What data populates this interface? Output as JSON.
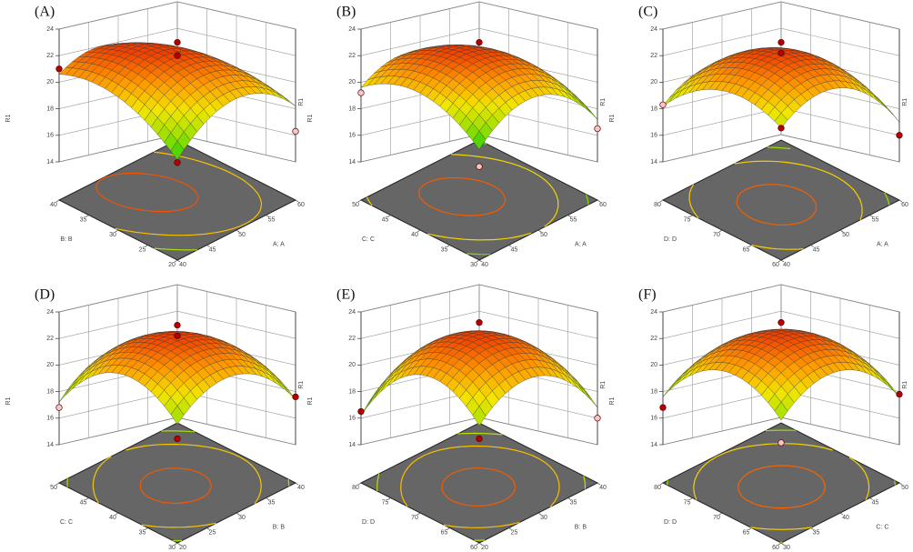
{
  "chart_data": [
    {
      "type": "surface",
      "panel_label": "(A)",
      "zlabel": "R1",
      "xlabel": "A: A",
      "ylabel": "B: B",
      "xlim": [
        40,
        60
      ],
      "xticks": [
        40,
        45,
        50,
        55,
        60
      ],
      "ylim": [
        20,
        40
      ],
      "yticks": [
        20,
        25,
        30,
        35,
        40
      ],
      "zlim": [
        14,
        24
      ],
      "zticks": [
        14,
        16,
        18,
        20,
        22,
        24
      ],
      "surface": {
        "x": [
          40,
          50,
          60
        ],
        "y": [
          20,
          30,
          40
        ],
        "z": [
          [
            16.2,
            19.9,
            20.6
          ],
          [
            19.8,
            22.3,
            21.8
          ],
          [
            18.2,
            19.5,
            17.8
          ]
        ]
      },
      "points": {
        "x": [
          50,
          50,
          40,
          60,
          40
        ],
        "y": [
          30,
          30,
          40,
          20,
          20
        ],
        "z": [
          23.0,
          22.0,
          21.0,
          16.3,
          16.0
        ],
        "colors": [
          "#b30000",
          "#b30000",
          "#b30000",
          "#f7c6c6",
          "#b30000"
        ]
      },
      "colormap": [
        "#1fcf00",
        "#9ee000",
        "#f2e600",
        "#ff9a00",
        "#f04000"
      ],
      "floor_color": "#666666"
    },
    {
      "type": "surface",
      "panel_label": "(B)",
      "zlabel": "R1",
      "xlabel": "A: A",
      "ylabel": "C: C",
      "xlim": [
        40,
        60
      ],
      "xticks": [
        40,
        45,
        50,
        55,
        60
      ],
      "ylim": [
        30,
        50
      ],
      "yticks": [
        30,
        35,
        40,
        45,
        50
      ],
      "zlim": [
        14,
        24
      ],
      "zticks": [
        14,
        16,
        18,
        20,
        22,
        24
      ],
      "surface": {
        "x": [
          40,
          50,
          60
        ],
        "y": [
          30,
          40,
          50
        ],
        "z": [
          [
            17.0,
            20.2,
            19.6
          ],
          [
            20.0,
            22.4,
            21.3
          ],
          [
            17.2,
            19.6,
            17.5
          ]
        ]
      },
      "points": {
        "x": [
          50,
          40,
          60,
          40
        ],
        "y": [
          40,
          50,
          30,
          30
        ],
        "z": [
          23.0,
          19.2,
          16.5,
          15.7
        ],
        "colors": [
          "#b30000",
          "#f7c6c6",
          "#f7c6c6",
          "#f7c6c6"
        ]
      },
      "colormap": [
        "#1fcf00",
        "#9ee000",
        "#f2e600",
        "#ff9a00",
        "#f04000"
      ],
      "floor_color": "#666666"
    },
    {
      "type": "surface",
      "panel_label": "(C)",
      "zlabel": "R1",
      "xlabel": "A: A",
      "ylabel": "D: D",
      "xlim": [
        40,
        60
      ],
      "xticks": [
        40,
        45,
        50,
        55,
        60
      ],
      "ylim": [
        60,
        80
      ],
      "yticks": [
        60,
        65,
        70,
        75,
        80
      ],
      "zlim": [
        14,
        24
      ],
      "zticks": [
        14,
        16,
        18,
        20,
        22,
        24
      ],
      "surface": {
        "x": [
          40,
          50,
          60
        ],
        "y": [
          60,
          70,
          80
        ],
        "z": [
          [
            18.6,
            20.4,
            18.2
          ],
          [
            20.6,
            22.5,
            20.3
          ],
          [
            17.0,
            19.2,
            16.6
          ]
        ]
      },
      "points": {
        "x": [
          50,
          50,
          40,
          60,
          40
        ],
        "y": [
          70,
          70,
          80,
          60,
          60
        ],
        "z": [
          23.0,
          22.2,
          18.3,
          16.0,
          18.6
        ],
        "colors": [
          "#b30000",
          "#b30000",
          "#f7c6c6",
          "#b30000",
          "#b30000"
        ]
      },
      "colormap": [
        "#1fcf00",
        "#9ee000",
        "#f2e600",
        "#ff9a00",
        "#f04000"
      ],
      "floor_color": "#666666"
    },
    {
      "type": "surface",
      "panel_label": "(D)",
      "zlabel": "R1",
      "xlabel": "B: B",
      "ylabel": "C: C",
      "xlim": [
        20,
        40
      ],
      "xticks": [
        20,
        25,
        30,
        35,
        40
      ],
      "ylim": [
        30,
        50
      ],
      "yticks": [
        30,
        35,
        40,
        45,
        50
      ],
      "zlim": [
        14,
        24
      ],
      "zticks": [
        14,
        16,
        18,
        20,
        22,
        24
      ],
      "surface": {
        "x": [
          20,
          30,
          40
        ],
        "y": [
          30,
          40,
          50
        ],
        "z": [
          [
            17.6,
            20.4,
            17.2
          ],
          [
            20.3,
            22.4,
            20.0
          ],
          [
            17.4,
            19.8,
            16.4
          ]
        ]
      },
      "points": {
        "x": [
          30,
          30,
          20,
          40,
          20
        ],
        "y": [
          40,
          40,
          50,
          30,
          30
        ],
        "z": [
          23.0,
          22.2,
          16.8,
          17.6,
          16.5
        ],
        "colors": [
          "#b30000",
          "#b30000",
          "#f7c6c6",
          "#b30000",
          "#b30000"
        ]
      },
      "colormap": [
        "#1fcf00",
        "#9ee000",
        "#f2e600",
        "#ff9a00",
        "#f04000"
      ],
      "floor_color": "#666666"
    },
    {
      "type": "surface",
      "panel_label": "(E)",
      "zlabel": "R1",
      "xlabel": "B: B",
      "ylabel": "D: D",
      "xlim": [
        20,
        40
      ],
      "xticks": [
        20,
        25,
        30,
        35,
        40
      ],
      "ylim": [
        60,
        80
      ],
      "yticks": [
        60,
        65,
        70,
        75,
        80
      ],
      "zlim": [
        14,
        24
      ],
      "zticks": [
        14,
        16,
        18,
        20,
        22,
        24
      ],
      "surface": {
        "x": [
          20,
          30,
          40
        ],
        "y": [
          60,
          70,
          80
        ],
        "z": [
          [
            17.5,
            20.3,
            16.2
          ],
          [
            20.2,
            22.5,
            19.6
          ],
          [
            16.8,
            19.5,
            15.8
          ]
        ]
      },
      "points": {
        "x": [
          30,
          20,
          40,
          20
        ],
        "y": [
          70,
          80,
          60,
          60
        ],
        "z": [
          23.2,
          16.5,
          16.0,
          16.5
        ],
        "colors": [
          "#b30000",
          "#b30000",
          "#f7c6c6",
          "#b30000"
        ]
      },
      "colormap": [
        "#1fcf00",
        "#9ee000",
        "#f2e600",
        "#ff9a00",
        "#f04000"
      ],
      "floor_color": "#666666"
    },
    {
      "type": "surface",
      "panel_label": "(F)",
      "zlabel": "R1",
      "xlabel": "C: C",
      "ylabel": "D: D",
      "xlim": [
        30,
        50
      ],
      "xticks": [
        30,
        35,
        40,
        45,
        50
      ],
      "ylim": [
        60,
        80
      ],
      "yticks": [
        60,
        65,
        70,
        75,
        80
      ],
      "zlim": [
        14,
        24
      ],
      "zticks": [
        14,
        16,
        18,
        20,
        22,
        24
      ],
      "surface": {
        "x": [
          30,
          40,
          50
        ],
        "y": [
          60,
          70,
          80
        ],
        "z": [
          [
            17.9,
            20.6,
            17.6
          ],
          [
            20.6,
            22.6,
            19.9
          ],
          [
            17.6,
            20.0,
            16.6
          ]
        ]
      },
      "points": {
        "x": [
          40,
          30,
          50,
          30
        ],
        "y": [
          70,
          80,
          60,
          60
        ],
        "z": [
          23.2,
          16.8,
          17.8,
          16.2
        ],
        "colors": [
          "#b30000",
          "#b30000",
          "#b30000",
          "#f7c6c6"
        ]
      },
      "colormap": [
        "#1fcf00",
        "#9ee000",
        "#f2e600",
        "#ff9a00",
        "#f04000"
      ],
      "floor_color": "#666666"
    }
  ]
}
